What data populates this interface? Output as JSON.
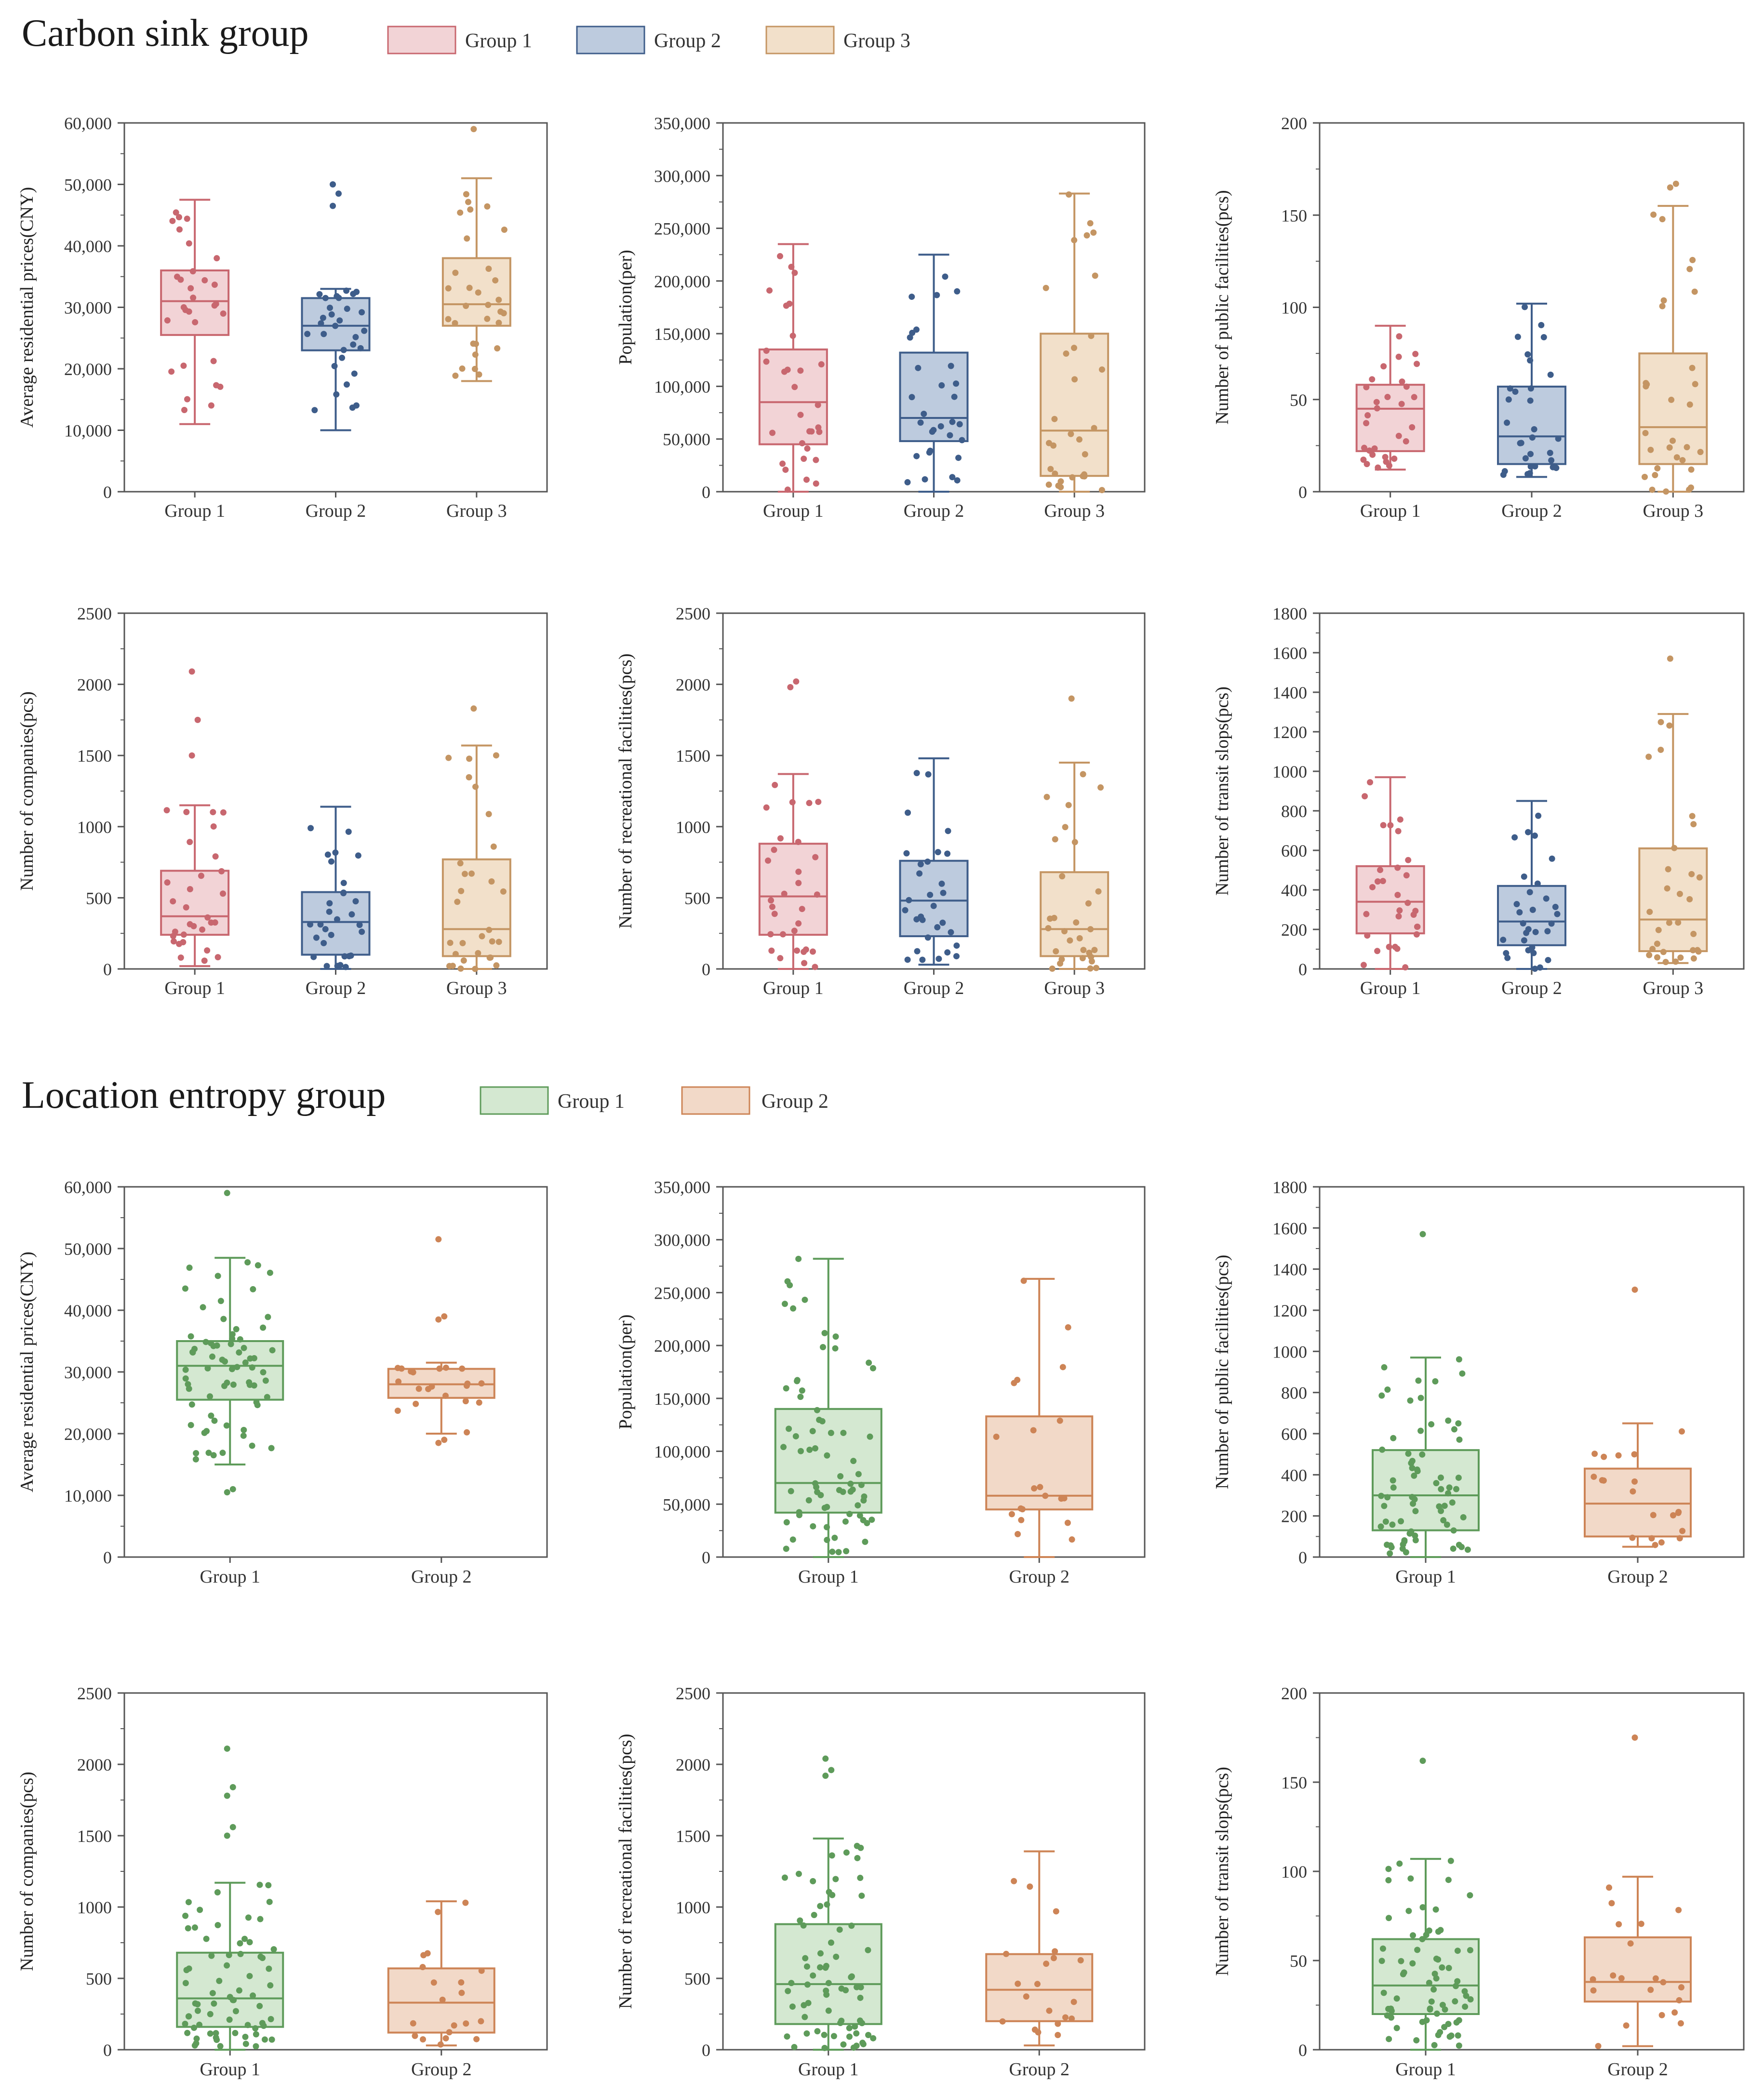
{
  "sections": [
    {
      "title": "Carbon sink group",
      "groups": [
        {
          "name": "Group 1",
          "stroke": "#C8676F",
          "fill": "#F2D3D6"
        },
        {
          "name": "Group 2",
          "stroke": "#3E5D8A",
          "fill": "#BDCBDE"
        },
        {
          "name": "Group 3",
          "stroke": "#C49563",
          "fill": "#F2E0CA"
        }
      ]
    },
    {
      "title": "Location entropy group",
      "groups": [
        {
          "name": "Group 1",
          "stroke": "#5E9B5A",
          "fill": "#D4E8D1"
        },
        {
          "name": "Group 2",
          "stroke": "#CD8456",
          "fill": "#F2D9C8"
        }
      ]
    }
  ],
  "chart_data": [
    {
      "type": "boxplot",
      "section": 0,
      "ylabel": "Average residential prices(CNY)",
      "ylim": [
        0,
        60000
      ],
      "yticks": [
        0,
        10000,
        20000,
        30000,
        40000,
        50000,
        60000
      ],
      "yticklabels": [
        "0",
        "10,000",
        "20,000",
        "30,000",
        "40,000",
        "50,000",
        "60,000"
      ],
      "categories": [
        "Group 1",
        "Group 2",
        "Group 3"
      ],
      "boxes": [
        {
          "whislo": 11000,
          "q1": 25500,
          "med": 31000,
          "q3": 36000,
          "whishi": 47500
        },
        {
          "whislo": 10000,
          "q1": 23000,
          "med": 27000,
          "q3": 31500,
          "whishi": 33000
        },
        {
          "whislo": 18000,
          "q1": 27000,
          "med": 30500,
          "q3": 38000,
          "whishi": 51000
        }
      ],
      "outliers": [
        [],
        [
          46500,
          48500,
          50000
        ],
        [
          59000
        ]
      ]
    },
    {
      "type": "boxplot",
      "section": 0,
      "ylabel": "Population(per)",
      "ylim": [
        0,
        350000
      ],
      "yticks": [
        0,
        50000,
        100000,
        150000,
        200000,
        250000,
        300000,
        350000
      ],
      "yticklabels": [
        "0",
        "50,000",
        "100,000",
        "150,000",
        "200,000",
        "250,000",
        "300,000",
        "350,000"
      ],
      "categories": [
        "Group 1",
        "Group 2",
        "Group 3"
      ],
      "boxes": [
        {
          "whislo": 0,
          "q1": 45000,
          "med": 85000,
          "q3": 135000,
          "whishi": 235000
        },
        {
          "whislo": 0,
          "q1": 48000,
          "med": 70000,
          "q3": 132000,
          "whishi": 225000
        },
        {
          "whislo": 0,
          "q1": 15000,
          "med": 58000,
          "q3": 150000,
          "whishi": 283000
        }
      ],
      "outliers": [
        [],
        [],
        []
      ]
    },
    {
      "type": "boxplot",
      "section": 0,
      "ylabel": "Number of public facilities(pcs)",
      "ylim": [
        0,
        200
      ],
      "yticks": [
        0,
        50,
        100,
        150,
        200
      ],
      "yticklabels": [
        "0",
        "50",
        "100",
        "150",
        "200"
      ],
      "categories": [
        "Group 1",
        "Group 2",
        "Group 3"
      ],
      "boxes": [
        {
          "whislo": 12,
          "q1": 22,
          "med": 45,
          "q3": 58,
          "whishi": 90
        },
        {
          "whislo": 8,
          "q1": 15,
          "med": 30,
          "q3": 57,
          "whishi": 102
        },
        {
          "whislo": 0,
          "q1": 15,
          "med": 35,
          "q3": 75,
          "whishi": 155
        }
      ],
      "outliers": [
        [],
        [],
        [
          165,
          167
        ]
      ]
    },
    {
      "type": "boxplot",
      "section": 0,
      "ylabel": "Number of companies(pcs)",
      "ylim": [
        0,
        2500
      ],
      "yticks": [
        0,
        500,
        1000,
        1500,
        2000,
        2500
      ],
      "yticklabels": [
        "0",
        "500",
        "1000",
        "1500",
        "2000",
        "2500"
      ],
      "categories": [
        "Group 1",
        "Group 2",
        "Group 3"
      ],
      "boxes": [
        {
          "whislo": 20,
          "q1": 240,
          "med": 370,
          "q3": 690,
          "whishi": 1150
        },
        {
          "whislo": 0,
          "q1": 100,
          "med": 330,
          "q3": 540,
          "whishi": 1140
        },
        {
          "whislo": 0,
          "q1": 90,
          "med": 280,
          "q3": 770,
          "whishi": 1570
        }
      ],
      "outliers": [
        [
          1500,
          1750,
          2090
        ],
        [],
        [
          1830
        ]
      ]
    },
    {
      "type": "boxplot",
      "section": 0,
      "ylabel": "Number of recreational facilities(pcs)",
      "ylim": [
        0,
        2500
      ],
      "yticks": [
        0,
        500,
        1000,
        1500,
        2000,
        2500
      ],
      "yticklabels": [
        "0",
        "500",
        "1000",
        "1500",
        "2000",
        "2500"
      ],
      "categories": [
        "Group 1",
        "Group 2",
        "Group 3"
      ],
      "boxes": [
        {
          "whislo": 0,
          "q1": 240,
          "med": 510,
          "q3": 880,
          "whishi": 1370
        },
        {
          "whislo": 30,
          "q1": 230,
          "med": 480,
          "q3": 760,
          "whishi": 1480
        },
        {
          "whislo": 0,
          "q1": 90,
          "med": 280,
          "q3": 680,
          "whishi": 1450
        }
      ],
      "outliers": [
        [
          1980,
          2020
        ],
        [],
        [
          1900
        ]
      ]
    },
    {
      "type": "boxplot",
      "section": 0,
      "ylabel": "Number of transit slops(pcs)",
      "ylim": [
        0,
        1800
      ],
      "yticks": [
        0,
        200,
        400,
        600,
        800,
        1000,
        1200,
        1400,
        1600,
        1800
      ],
      "yticklabels": [
        "0",
        "200",
        "400",
        "600",
        "800",
        "1000",
        "1200",
        "1400",
        "1600",
        "1800"
      ],
      "categories": [
        "Group 1",
        "Group 2",
        "Group 3"
      ],
      "boxes": [
        {
          "whislo": 0,
          "q1": 180,
          "med": 340,
          "q3": 520,
          "whishi": 970
        },
        {
          "whislo": 0,
          "q1": 120,
          "med": 240,
          "q3": 420,
          "whishi": 850
        },
        {
          "whislo": 30,
          "q1": 90,
          "med": 250,
          "q3": 610,
          "whishi": 1290
        }
      ],
      "outliers": [
        [],
        [],
        [
          1570
        ]
      ]
    },
    {
      "type": "boxplot",
      "section": 1,
      "ylabel": "Average residential prices(CNY)",
      "ylim": [
        0,
        60000
      ],
      "yticks": [
        0,
        10000,
        20000,
        30000,
        40000,
        50000,
        60000
      ],
      "yticklabels": [
        "0",
        "10,000",
        "20,000",
        "30,000",
        "40,000",
        "50,000",
        "60,000"
      ],
      "categories": [
        "Group 1",
        "Group 2"
      ],
      "boxes": [
        {
          "whislo": 15000,
          "q1": 25500,
          "med": 31000,
          "q3": 35000,
          "whishi": 48500
        },
        {
          "whislo": 20000,
          "q1": 25800,
          "med": 28000,
          "q3": 30500,
          "whishi": 31500
        }
      ],
      "outliers": [
        [
          10500,
          11000,
          59000
        ],
        [
          18500,
          19000,
          38500,
          39000,
          51500
        ]
      ]
    },
    {
      "type": "boxplot",
      "section": 1,
      "ylabel": "Population(per)",
      "ylim": [
        0,
        350000
      ],
      "yticks": [
        0,
        50000,
        100000,
        150000,
        200000,
        250000,
        300000,
        350000
      ],
      "yticklabels": [
        "0",
        "50,000",
        "100,000",
        "150,000",
        "200,000",
        "250,000",
        "300,000",
        "350,000"
      ],
      "categories": [
        "Group 1",
        "Group 2"
      ],
      "boxes": [
        {
          "whislo": 0,
          "q1": 42000,
          "med": 70000,
          "q3": 140000,
          "whishi": 282000
        },
        {
          "whislo": 0,
          "q1": 45000,
          "med": 58000,
          "q3": 133000,
          "whishi": 263000
        }
      ],
      "outliers": [
        [],
        []
      ]
    },
    {
      "type": "boxplot",
      "section": 1,
      "ylabel": "Number of public facilities(pcs)",
      "ylim": [
        0,
        1800
      ],
      "yticks": [
        0,
        200,
        400,
        600,
        800,
        1000,
        1200,
        1400,
        1600,
        1800
      ],
      "yticklabels": [
        "0",
        "200",
        "400",
        "600",
        "800",
        "1000",
        "1200",
        "1400",
        "1600",
        "1800"
      ],
      "categories": [
        "Group 1",
        "Group 2"
      ],
      "boxes": [
        {
          "whislo": 0,
          "q1": 130,
          "med": 300,
          "q3": 520,
          "whishi": 970
        },
        {
          "whislo": 50,
          "q1": 100,
          "med": 260,
          "q3": 430,
          "whishi": 650
        }
      ],
      "outliers": [
        [
          1570
        ],
        [
          1300
        ]
      ]
    },
    {
      "type": "boxplot",
      "section": 1,
      "ylabel": "Number of companies(pcs)",
      "ylim": [
        0,
        2500
      ],
      "yticks": [
        0,
        500,
        1000,
        1500,
        2000,
        2500
      ],
      "yticklabels": [
        "0",
        "500",
        "1000",
        "1500",
        "2000",
        "2500"
      ],
      "categories": [
        "Group 1",
        "Group 2"
      ],
      "boxes": [
        {
          "whislo": 0,
          "q1": 160,
          "med": 360,
          "q3": 680,
          "whishi": 1170
        },
        {
          "whislo": 30,
          "q1": 120,
          "med": 330,
          "q3": 570,
          "whishi": 1040
        }
      ],
      "outliers": [
        [
          1500,
          1560,
          1780,
          1840,
          2110
        ],
        []
      ]
    },
    {
      "type": "boxplot",
      "section": 1,
      "ylabel": "Number of recreational facilities(pcs)",
      "ylim": [
        0,
        2500
      ],
      "yticks": [
        0,
        500,
        1000,
        1500,
        2000,
        2500
      ],
      "yticklabels": [
        "0",
        "500",
        "1000",
        "1500",
        "2000",
        "2500"
      ],
      "categories": [
        "Group 1",
        "Group 2"
      ],
      "boxes": [
        {
          "whislo": 0,
          "q1": 180,
          "med": 460,
          "q3": 880,
          "whishi": 1480
        },
        {
          "whislo": 30,
          "q1": 200,
          "med": 420,
          "q3": 670,
          "whishi": 1390
        }
      ],
      "outliers": [
        [
          1920,
          1960,
          2040
        ],
        []
      ]
    },
    {
      "type": "boxplot",
      "section": 1,
      "ylabel": "Number of transit slops(pcs)",
      "ylim": [
        0,
        200
      ],
      "yticks": [
        0,
        50,
        100,
        150,
        200
      ],
      "yticklabels": [
        "0",
        "50",
        "100",
        "150",
        "200"
      ],
      "categories": [
        "Group 1",
        "Group 2"
      ],
      "boxes": [
        {
          "whislo": 0,
          "q1": 20,
          "med": 36,
          "q3": 62,
          "whishi": 107
        },
        {
          "whislo": 2,
          "q1": 27,
          "med": 38,
          "q3": 63,
          "whishi": 97
        }
      ],
      "outliers": [
        [
          162
        ],
        [
          175
        ]
      ]
    }
  ]
}
